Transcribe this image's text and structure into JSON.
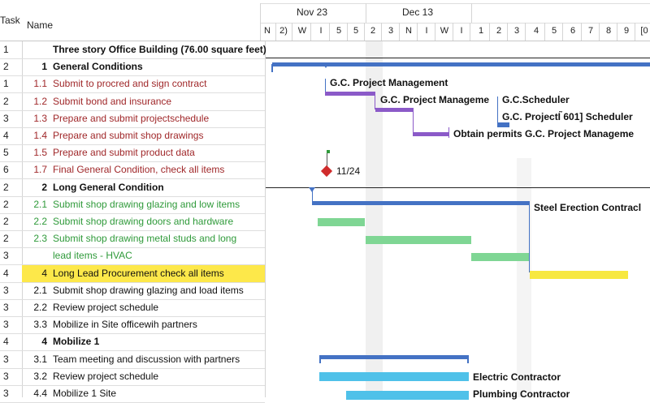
{
  "header": {
    "task": "Task",
    "name": "Name"
  },
  "timeline": {
    "months": [
      "Nov 23",
      "Dec 13"
    ],
    "days": [
      "N",
      "2)",
      "W",
      "I",
      "5",
      "5",
      "2",
      "3",
      "N",
      "I",
      "W",
      "I",
      "1",
      "2",
      "3",
      "4",
      "5",
      "6",
      "7",
      "8",
      "9",
      "[0"
    ]
  },
  "rows": [
    {
      "num": "1",
      "wbs": "",
      "name": "Three story Office Building (76.00 square feet)",
      "style": "bold"
    },
    {
      "num": "2",
      "wbs": "1",
      "name": "General Conditions",
      "style": "bold"
    },
    {
      "num": "1",
      "wbs": "1.1",
      "name": "Submit to procred and sign contract",
      "style": "red"
    },
    {
      "num": "2",
      "wbs": "1.2",
      "name": "Submit bond and insurance",
      "style": "red"
    },
    {
      "num": "3",
      "wbs": "1.3",
      "name": "Prepare and submit projectschedule",
      "style": "red"
    },
    {
      "num": "4",
      "wbs": "1.4",
      "name": "Prepare and submit shop drawings",
      "style": "red"
    },
    {
      "num": "5",
      "wbs": "1.5",
      "name": "Prepare and submit product data",
      "style": "red"
    },
    {
      "num": "6",
      "wbs": "1.7",
      "name": "Final General Condition, check all items",
      "style": "red"
    },
    {
      "num": "2",
      "wbs": "2",
      "name": "Long General Condition",
      "style": "bold"
    },
    {
      "num": "2",
      "wbs": "2.1",
      "name": "Submit shop drawing glazing and low items",
      "style": "green"
    },
    {
      "num": "2",
      "wbs": "2.2",
      "name": "Submit shop drawing doors and hardware",
      "style": "green"
    },
    {
      "num": "2",
      "wbs": "2.3",
      "name": "Submit shop drawing metal studs and long",
      "style": "green"
    },
    {
      "num": "3",
      "wbs": "",
      "name": "lead items - HVAC",
      "style": "green"
    },
    {
      "num": "4",
      "wbs": "4",
      "name": "Long Lead Procurement check all items",
      "style": "hl"
    },
    {
      "num": "3",
      "wbs": "2.1",
      "name": "Submit shop drawing glazing and load items",
      "style": "plain"
    },
    {
      "num": "3",
      "wbs": "2.2",
      "name": "Review project schedule",
      "style": "plain"
    },
    {
      "num": "3",
      "wbs": "3.3",
      "name": "Mobilize in Site officewih partners",
      "style": "plain"
    },
    {
      "num": "4",
      "wbs": "4",
      "name": "Mobilize 1",
      "style": "bold"
    },
    {
      "num": "3",
      "wbs": "3.1",
      "name": "Team meeting and discussion with partners",
      "style": "plain"
    },
    {
      "num": "3",
      "wbs": "3.2",
      "name": "Review project schedule",
      "style": "plain"
    },
    {
      "num": "3",
      "wbs": "4.4",
      "name": "Mobilize 1 Site",
      "style": "plain"
    }
  ],
  "bar_labels": {
    "gc_pm1": "G.C. Project Management",
    "gc_pm2": "G.C. Project Manageme",
    "gc_sched1": "G.C.Scheduler",
    "gc_sched2": "G.C. ProjectI ̃601] Scheduler",
    "permits": "Obtain permits G.C. Project Manageme",
    "milestone": "11/24",
    "steel": "Steel Erection Contracl",
    "electric": "Electric Contractor",
    "plumbing": "Plumbing Contractor"
  },
  "colors": {
    "summary": "#4472c4",
    "purple": "#8b5ac8",
    "green_bar": "#7fd694",
    "yellow_bar": "#f7e840",
    "cyan_bar": "#4fc1e9",
    "milestone": "#d02c2c"
  }
}
